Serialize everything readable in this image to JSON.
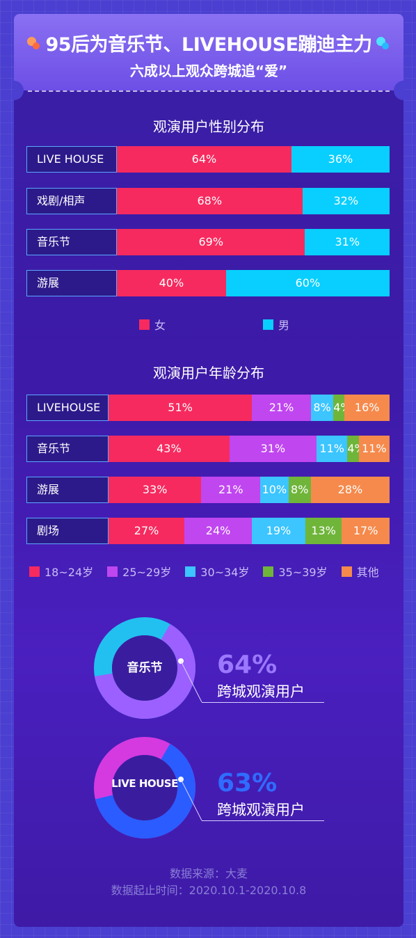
{
  "header": {
    "title": "95后为音乐节、LIVEHOUSE蹦迪主力",
    "subtitle": "六成以上观众跨城追“爱”"
  },
  "gender": {
    "title": "观演用户性别分布",
    "legend": [
      {
        "label": "女",
        "color": "#f62a5f"
      },
      {
        "label": "男",
        "color": "#08cfff"
      }
    ]
  },
  "age": {
    "title": "观演用户年龄分布",
    "legend": [
      {
        "label": "18~24岁",
        "color": "#f62a5f"
      },
      {
        "label": "25~29岁",
        "color": "#c046f0"
      },
      {
        "label": "30~34岁",
        "color": "#3cc5ff"
      },
      {
        "label": "35~39岁",
        "color": "#6fb53a"
      },
      {
        "label": "其他",
        "color": "#f58a4c"
      }
    ]
  },
  "chart_data": [
    {
      "type": "bar",
      "orientation": "horizontal-stacked",
      "title": "观演用户性别分布",
      "categories": [
        "LIVE HOUSE",
        "戏剧/相声",
        "音乐节",
        "游展"
      ],
      "series": [
        {
          "name": "女",
          "values": [
            64,
            68,
            69,
            40
          ],
          "labels": [
            "64%",
            "68%",
            "69%",
            "40%"
          ]
        },
        {
          "name": "男",
          "values": [
            36,
            32,
            31,
            60
          ],
          "labels": [
            "36%",
            "32%",
            "31%",
            "60%"
          ]
        }
      ],
      "colors": [
        "#f62a5f",
        "#08cfff"
      ]
    },
    {
      "type": "bar",
      "orientation": "horizontal-stacked",
      "title": "观演用户年龄分布",
      "categories": [
        "LIVEHOUSE",
        "音乐节",
        "游展",
        "剧场"
      ],
      "series": [
        {
          "name": "18~24岁",
          "values": [
            51,
            43,
            33,
            27
          ],
          "labels": [
            "51%",
            "43%",
            "33%",
            "27%"
          ]
        },
        {
          "name": "25~29岁",
          "values": [
            21,
            31,
            21,
            24
          ],
          "labels": [
            "21%",
            "31%",
            "21%",
            "24%"
          ]
        },
        {
          "name": "30~34岁",
          "values": [
            8,
            11,
            10,
            19
          ],
          "labels": [
            "8%",
            "11%",
            "10%",
            "19%"
          ]
        },
        {
          "name": "35~39岁",
          "values": [
            4,
            4,
            8,
            13
          ],
          "labels": [
            "4%",
            "4%",
            "8%",
            "13%"
          ]
        },
        {
          "name": "其他",
          "values": [
            16,
            11,
            28,
            17
          ],
          "labels": [
            "16%",
            "11%",
            "28%",
            "17%"
          ]
        }
      ],
      "colors": [
        "#f62a5f",
        "#c046f0",
        "#3cc5ff",
        "#6fb53a",
        "#f58a4c"
      ]
    },
    {
      "type": "pie",
      "subtype": "donut",
      "center_label": "音乐节",
      "value": 64,
      "value_label": "64%",
      "caption": "跨城观演用户",
      "colors": {
        "main": "#9b60ff",
        "rest": "#22c0f0",
        "text": "#9b78ff"
      }
    },
    {
      "type": "pie",
      "subtype": "donut",
      "center_label": "LIVE HOUSE",
      "value": 63,
      "value_label": "63%",
      "caption": "跨城观演用户",
      "colors": {
        "main": "#2a5cff",
        "rest": "#d43ae0",
        "text": "#2f6cff"
      }
    }
  ],
  "footer": {
    "source": "数据来源：大麦",
    "period": "数据起止时间：2020.10.1-2020.10.8"
  }
}
